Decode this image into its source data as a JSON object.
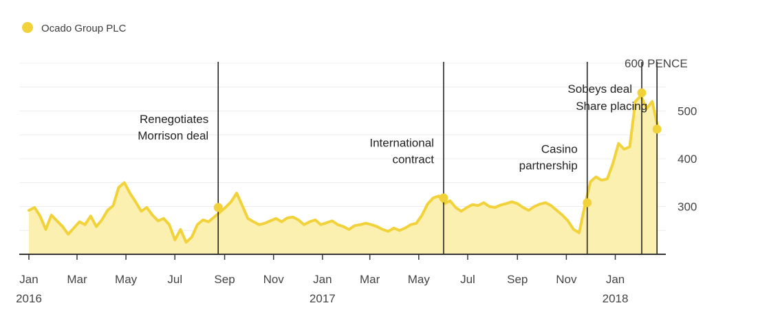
{
  "chart_data": {
    "type": "area",
    "title": "",
    "legend": [
      {
        "name": "Ocado Group PLC",
        "color": "#f2d23a"
      }
    ],
    "colors": {
      "line": "#f2d23a",
      "fill": "#fbf0b0",
      "marker": "#f2d23a",
      "grid": "#ececec",
      "event_line": "#222222",
      "axis": "#333333"
    },
    "unit_label": "PENCE",
    "ylim": [
      200,
      600
    ],
    "y_ticks": [
      {
        "value": 600,
        "label": "600"
      },
      {
        "value": 500,
        "label": "500"
      },
      {
        "value": 400,
        "label": "400"
      },
      {
        "value": 300,
        "label": "300"
      }
    ],
    "grid_values": [
      600,
      550,
      500,
      450,
      400,
      350,
      300,
      250
    ],
    "x_ticks": [
      {
        "date": "2016-01-01",
        "label": "Jan",
        "year": "2016"
      },
      {
        "date": "2016-03-01",
        "label": "Mar",
        "year": ""
      },
      {
        "date": "2016-05-01",
        "label": "May",
        "year": ""
      },
      {
        "date": "2016-07-01",
        "label": "Jul",
        "year": ""
      },
      {
        "date": "2016-09-01",
        "label": "Sep",
        "year": ""
      },
      {
        "date": "2016-11-01",
        "label": "Nov",
        "year": ""
      },
      {
        "date": "2017-01-01",
        "label": "Jan",
        "year": "2017"
      },
      {
        "date": "2017-03-01",
        "label": "Mar",
        "year": ""
      },
      {
        "date": "2017-05-01",
        "label": "May",
        "year": ""
      },
      {
        "date": "2017-07-01",
        "label": "Jul",
        "year": ""
      },
      {
        "date": "2017-09-01",
        "label": "Sep",
        "year": ""
      },
      {
        "date": "2017-11-01",
        "label": "Nov",
        "year": ""
      },
      {
        "date": "2018-01-01",
        "label": "Jan",
        "year": "2018"
      }
    ],
    "xlim": [
      "2015-12-20",
      "2018-03-05"
    ],
    "series": [
      {
        "name": "Ocado Group PLC",
        "points": [
          [
            "2016-01-01",
            292
          ],
          [
            "2016-01-08",
            298
          ],
          [
            "2016-01-15",
            280
          ],
          [
            "2016-01-22",
            252
          ],
          [
            "2016-01-29",
            282
          ],
          [
            "2016-02-05",
            270
          ],
          [
            "2016-02-12",
            258
          ],
          [
            "2016-02-19",
            242
          ],
          [
            "2016-02-26",
            255
          ],
          [
            "2016-03-04",
            268
          ],
          [
            "2016-03-11",
            262
          ],
          [
            "2016-03-18",
            280
          ],
          [
            "2016-03-25",
            258
          ],
          [
            "2016-04-01",
            272
          ],
          [
            "2016-04-08",
            292
          ],
          [
            "2016-04-15",
            302
          ],
          [
            "2016-04-22",
            340
          ],
          [
            "2016-04-29",
            350
          ],
          [
            "2016-05-06",
            328
          ],
          [
            "2016-05-13",
            310
          ],
          [
            "2016-05-20",
            290
          ],
          [
            "2016-05-27",
            298
          ],
          [
            "2016-06-03",
            282
          ],
          [
            "2016-06-10",
            270
          ],
          [
            "2016-06-17",
            275
          ],
          [
            "2016-06-24",
            262
          ],
          [
            "2016-07-01",
            230
          ],
          [
            "2016-07-08",
            252
          ],
          [
            "2016-07-15",
            225
          ],
          [
            "2016-07-22",
            236
          ],
          [
            "2016-07-29",
            262
          ],
          [
            "2016-08-05",
            272
          ],
          [
            "2016-08-12",
            268
          ],
          [
            "2016-08-19",
            278
          ],
          [
            "2016-08-26",
            288
          ],
          [
            "2016-09-02",
            298
          ],
          [
            "2016-09-09",
            310
          ],
          [
            "2016-09-16",
            328
          ],
          [
            "2016-09-23",
            302
          ],
          [
            "2016-09-30",
            275
          ],
          [
            "2016-10-07",
            268
          ],
          [
            "2016-10-14",
            262
          ],
          [
            "2016-10-21",
            265
          ],
          [
            "2016-10-28",
            270
          ],
          [
            "2016-11-04",
            275
          ],
          [
            "2016-11-11",
            268
          ],
          [
            "2016-11-18",
            276
          ],
          [
            "2016-11-25",
            278
          ],
          [
            "2016-12-02",
            272
          ],
          [
            "2016-12-09",
            262
          ],
          [
            "2016-12-16",
            268
          ],
          [
            "2016-12-23",
            272
          ],
          [
            "2016-12-30",
            262
          ],
          [
            "2017-01-06",
            266
          ],
          [
            "2017-01-13",
            270
          ],
          [
            "2017-01-20",
            262
          ],
          [
            "2017-01-27",
            258
          ],
          [
            "2017-02-03",
            252
          ],
          [
            "2017-02-10",
            260
          ],
          [
            "2017-02-17",
            262
          ],
          [
            "2017-02-24",
            265
          ],
          [
            "2017-03-03",
            262
          ],
          [
            "2017-03-10",
            258
          ],
          [
            "2017-03-17",
            252
          ],
          [
            "2017-03-24",
            248
          ],
          [
            "2017-03-31",
            255
          ],
          [
            "2017-04-07",
            250
          ],
          [
            "2017-04-14",
            255
          ],
          [
            "2017-04-21",
            262
          ],
          [
            "2017-04-28",
            265
          ],
          [
            "2017-05-05",
            282
          ],
          [
            "2017-05-12",
            305
          ],
          [
            "2017-05-19",
            318
          ],
          [
            "2017-05-26",
            322
          ],
          [
            "2017-06-02",
            306
          ],
          [
            "2017-06-09",
            312
          ],
          [
            "2017-06-16",
            298
          ],
          [
            "2017-06-23",
            290
          ],
          [
            "2017-06-30",
            298
          ],
          [
            "2017-07-07",
            304
          ],
          [
            "2017-07-14",
            302
          ],
          [
            "2017-07-21",
            308
          ],
          [
            "2017-07-28",
            300
          ],
          [
            "2017-08-04",
            298
          ],
          [
            "2017-08-11",
            303
          ],
          [
            "2017-08-18",
            306
          ],
          [
            "2017-08-25",
            310
          ],
          [
            "2017-09-01",
            306
          ],
          [
            "2017-09-08",
            298
          ],
          [
            "2017-09-15",
            292
          ],
          [
            "2017-09-22",
            300
          ],
          [
            "2017-09-29",
            305
          ],
          [
            "2017-10-06",
            308
          ],
          [
            "2017-10-13",
            302
          ],
          [
            "2017-10-20",
            292
          ],
          [
            "2017-10-27",
            282
          ],
          [
            "2017-11-03",
            270
          ],
          [
            "2017-11-10",
            252
          ],
          [
            "2017-11-17",
            245
          ],
          [
            "2017-11-24",
            302
          ],
          [
            "2017-12-01",
            352
          ],
          [
            "2017-12-08",
            362
          ],
          [
            "2017-12-15",
            355
          ],
          [
            "2017-12-22",
            358
          ],
          [
            "2017-12-29",
            390
          ],
          [
            "2018-01-05",
            432
          ],
          [
            "2018-01-12",
            420
          ],
          [
            "2018-01-19",
            425
          ],
          [
            "2018-01-26",
            520
          ],
          [
            "2018-02-02",
            532
          ],
          [
            "2018-02-09",
            505
          ],
          [
            "2018-02-16",
            520
          ],
          [
            "2018-02-23",
            465
          ]
        ]
      }
    ],
    "events": [
      {
        "date": "2016-08-24",
        "lines": [
          "Renegotiates",
          "Morrison deal"
        ],
        "marker_value": 298,
        "label_side": "left",
        "label_value": 475
      },
      {
        "date": "2017-06-01",
        "lines": [
          "International",
          "contract"
        ],
        "marker_value": 318,
        "label_side": "left",
        "label_value": 425
      },
      {
        "date": "2017-11-27",
        "lines": [
          "Casino",
          "partnership"
        ],
        "marker_value": 308,
        "label_side": "left",
        "label_value": 412
      },
      {
        "date": "2018-02-03",
        "lines": [
          "Sobeys deal"
        ],
        "marker_value": 538,
        "label_side": "left",
        "label_value": 538
      },
      {
        "date": "2018-02-22",
        "lines": [
          "Share placing"
        ],
        "marker_value": 462,
        "label_side": "left",
        "label_value": 502
      }
    ]
  }
}
